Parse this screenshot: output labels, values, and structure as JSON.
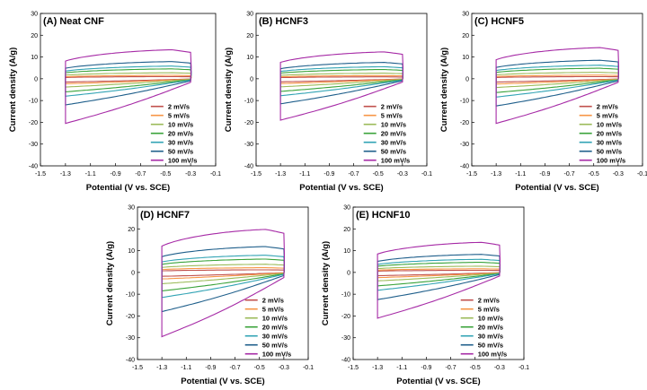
{
  "figure": {
    "colors": [
      "#c0504d",
      "#f79646",
      "#9bbb59",
      "#3aa33a",
      "#31a3b4",
      "#1f5f8b",
      "#a62aa6"
    ],
    "legend_labels": [
      "2 mV/s",
      "5 mV/s",
      "10 mV/s",
      "20 mV/s",
      "30 mV/s",
      "50 mV/s",
      "100 mV/s"
    ]
  },
  "chart_data": [
    {
      "type": "line",
      "title": "(A) Neat CNF",
      "xlabel": "Potential (V vs. SCE)",
      "ylabel": "Current density (A/g)",
      "xlim": [
        -1.5,
        -0.1
      ],
      "ylim": [
        -40,
        30
      ],
      "xticks": [
        "-1.5",
        "-1.3",
        "-1.1",
        "-0.9",
        "-0.7",
        "-0.5",
        "-0.3",
        "-0.1"
      ],
      "yticks": [
        "-40",
        "-30",
        "-20",
        "-10",
        "0",
        "10",
        "20",
        "30"
      ],
      "legend": "lower-right",
      "series": [
        {
          "name": "2 mV/s",
          "upper_max": 1.0,
          "lower_min": -1.5
        },
        {
          "name": "5 mV/s",
          "upper_max": 1.6,
          "lower_min": -2.3
        },
        {
          "name": "10 mV/s",
          "upper_max": 2.8,
          "lower_min": -3.8
        },
        {
          "name": "20 mV/s",
          "upper_max": 4.6,
          "lower_min": -6.0
        },
        {
          "name": "30 mV/s",
          "upper_max": 5.9,
          "lower_min": -8.0
        },
        {
          "name": "50 mV/s",
          "upper_max": 8.0,
          "lower_min": -12.0
        },
        {
          "name": "100 mV/s",
          "upper_max": 13.5,
          "lower_min": -20.5
        }
      ]
    },
    {
      "type": "line",
      "title": "(B) HCNF3",
      "xlabel": "Potential (V vs. SCE)",
      "ylabel": "Current density (A/g)",
      "xlim": [
        -1.5,
        -0.1
      ],
      "ylim": [
        -40,
        30
      ],
      "xticks": [
        "-1.5",
        "-1.3",
        "-1.1",
        "-0.9",
        "-0.7",
        "-0.5",
        "-0.3",
        "-0.1"
      ],
      "yticks": [
        "-40",
        "-30",
        "-20",
        "-10",
        "0",
        "10",
        "20",
        "30"
      ],
      "legend": "lower-right",
      "series": [
        {
          "name": "2 mV/s",
          "upper_max": 0.9,
          "lower_min": -1.4
        },
        {
          "name": "5 mV/s",
          "upper_max": 1.5,
          "lower_min": -2.2
        },
        {
          "name": "10 mV/s",
          "upper_max": 2.6,
          "lower_min": -3.7
        },
        {
          "name": "20 mV/s",
          "upper_max": 4.3,
          "lower_min": -5.8
        },
        {
          "name": "30 mV/s",
          "upper_max": 5.6,
          "lower_min": -7.8
        },
        {
          "name": "50 mV/s",
          "upper_max": 7.6,
          "lower_min": -11.5
        },
        {
          "name": "100 mV/s",
          "upper_max": 12.5,
          "lower_min": -19.0
        }
      ]
    },
    {
      "type": "line",
      "title": "(C) HCNF5",
      "xlabel": "Potential (V vs. SCE)",
      "ylabel": "Current density (A/g)",
      "xlim": [
        -1.5,
        -0.1
      ],
      "ylim": [
        -40,
        30
      ],
      "xticks": [
        "-1.5",
        "-1.3",
        "-1.1",
        "-0.9",
        "-0.7",
        "-0.5",
        "-0.3",
        "-0.1"
      ],
      "yticks": [
        "-40",
        "-30",
        "-20",
        "-10",
        "0",
        "10",
        "20",
        "30"
      ],
      "legend": "lower-right",
      "series": [
        {
          "name": "2 mV/s",
          "upper_max": 1.0,
          "lower_min": -1.5
        },
        {
          "name": "5 mV/s",
          "upper_max": 1.7,
          "lower_min": -2.4
        },
        {
          "name": "10 mV/s",
          "upper_max": 3.0,
          "lower_min": -4.0
        },
        {
          "name": "20 mV/s",
          "upper_max": 4.9,
          "lower_min": -6.3
        },
        {
          "name": "30 mV/s",
          "upper_max": 6.3,
          "lower_min": -8.4
        },
        {
          "name": "50 mV/s",
          "upper_max": 8.6,
          "lower_min": -12.5
        },
        {
          "name": "100 mV/s",
          "upper_max": 14.5,
          "lower_min": -20.5
        }
      ]
    },
    {
      "type": "line",
      "title": "(D) HCNF7",
      "xlabel": "Potential (V vs. SCE)",
      "ylabel": "Current density (A/g)",
      "xlim": [
        -1.5,
        -0.1
      ],
      "ylim": [
        -40,
        30
      ],
      "xticks": [
        "-1.5",
        "-1.3",
        "-1.1",
        "-0.9",
        "-0.7",
        "-0.5",
        "-0.3",
        "-0.1"
      ],
      "yticks": [
        "-40",
        "-30",
        "-20",
        "-10",
        "0",
        "10",
        "20",
        "30"
      ],
      "legend": "lower-right",
      "series": [
        {
          "name": "2 mV/s",
          "upper_max": 1.2,
          "lower_min": -1.8
        },
        {
          "name": "5 mV/s",
          "upper_max": 2.2,
          "lower_min": -3.0
        },
        {
          "name": "10 mV/s",
          "upper_max": 3.8,
          "lower_min": -5.2
        },
        {
          "name": "20 mV/s",
          "upper_max": 6.2,
          "lower_min": -8.5
        },
        {
          "name": "30 mV/s",
          "upper_max": 8.0,
          "lower_min": -11.5
        },
        {
          "name": "50 mV/s",
          "upper_max": 12.0,
          "lower_min": -18.0
        },
        {
          "name": "100 mV/s",
          "upper_max": 20.0,
          "lower_min": -29.5
        }
      ]
    },
    {
      "type": "line",
      "title": "(E) HCNF10",
      "xlabel": "Potential (V vs. SCE)",
      "ylabel": "Current density (A/g)",
      "xlim": [
        -1.5,
        -0.1
      ],
      "ylim": [
        -40,
        30
      ],
      "xticks": [
        "-1.5",
        "-1.3",
        "-1.1",
        "-0.9",
        "-0.7",
        "-0.5",
        "-0.3",
        "-0.1"
      ],
      "yticks": [
        "-40",
        "-30",
        "-20",
        "-10",
        "0",
        "10",
        "20",
        "30"
      ],
      "legend": "lower-right",
      "series": [
        {
          "name": "2 mV/s",
          "upper_max": 1.0,
          "lower_min": -1.5
        },
        {
          "name": "5 mV/s",
          "upper_max": 1.7,
          "lower_min": -2.4
        },
        {
          "name": "10 mV/s",
          "upper_max": 2.9,
          "lower_min": -3.9
        },
        {
          "name": "20 mV/s",
          "upper_max": 4.7,
          "lower_min": -6.2
        },
        {
          "name": "30 mV/s",
          "upper_max": 6.1,
          "lower_min": -8.2
        },
        {
          "name": "50 mV/s",
          "upper_max": 8.4,
          "lower_min": -12.5
        },
        {
          "name": "100 mV/s",
          "upper_max": 14.0,
          "lower_min": -21.0
        }
      ]
    }
  ]
}
